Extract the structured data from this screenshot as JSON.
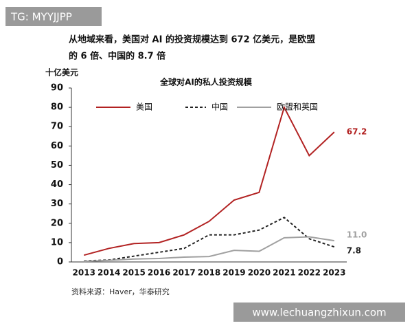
{
  "watermark": "TG: MYYJJPP",
  "heading": [
    "从地域来看，美国对 AI 的投资规模达到 672 亿美元，是欧盟",
    "的 6 倍、中国的 8.7 倍"
  ],
  "chart_data": {
    "type": "line",
    "title": "全球对AI的私人投资规模",
    "y_label": "十亿美元",
    "categories": [
      "2013",
      "2014",
      "2015",
      "2016",
      "2017",
      "2018",
      "2019",
      "2020",
      "2021",
      "2022",
      "2023"
    ],
    "series": [
      {
        "name": "美国",
        "color": "#b22222",
        "dash": "solid",
        "values": [
          3.5,
          7,
          9.5,
          10,
          14,
          21,
          32,
          36,
          80,
          55,
          67.2
        ],
        "value_labels": [
          null,
          null,
          null,
          null,
          null,
          null,
          null,
          null,
          null,
          null,
          "67.2"
        ]
      },
      {
        "name": "中国",
        "color": "#222222",
        "dash": "dashed",
        "values": [
          0.5,
          1,
          3,
          5,
          7,
          14,
          14,
          16.5,
          23,
          12,
          7.8
        ],
        "value_labels": [
          null,
          null,
          null,
          null,
          null,
          null,
          null,
          null,
          null,
          null,
          "7.8"
        ]
      },
      {
        "name": "欧盟和英国",
        "color": "#a0a0a0",
        "dash": "solid",
        "values": [
          0.3,
          0.8,
          1.5,
          1.8,
          2.5,
          2.8,
          6,
          5.5,
          12.5,
          13,
          11
        ],
        "value_labels": [
          null,
          null,
          null,
          null,
          null,
          null,
          null,
          null,
          null,
          null,
          "11.0"
        ]
      }
    ],
    "ylim": [
      0,
      90
    ],
    "yticks": [
      0,
      10,
      20,
      30,
      40,
      50,
      60,
      70,
      80,
      90
    ],
    "grid": false,
    "source": "资料来源：Haver，华泰研究"
  },
  "footer_url": "www.lechuangzhixun.com"
}
